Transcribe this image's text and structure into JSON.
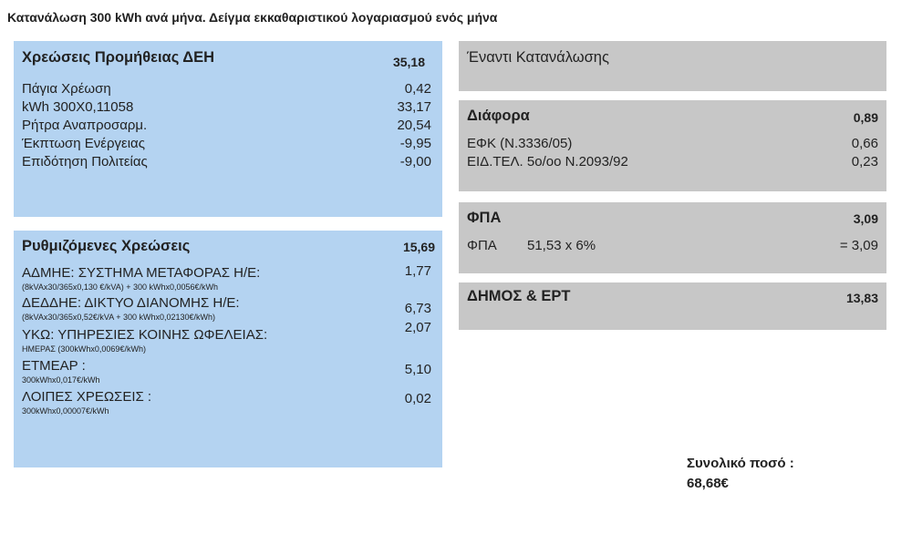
{
  "title": "Κατανάλωση 300 kWh ανά μήνα. Δείγμα εκκαθαριστικού λογαριασμού ενός μήνα",
  "supply": {
    "heading": "Χρεώσεις Προμήθειας ΔΕΗ",
    "total": "35,18",
    "items": [
      {
        "label": "Πάγια Χρέωση",
        "value": "0,42"
      },
      {
        "label": "kWh 300X0,11058",
        "value": "33,17"
      },
      {
        "label": "Ρήτρα Αναπροσαρμ.",
        "value": "20,54"
      },
      {
        "label": "Έκπτωση Ενέργειας",
        "value": "-9,95"
      },
      {
        "label": "Επιδότηση Πολιτείας",
        "value": "-9,00"
      }
    ]
  },
  "regulated": {
    "heading": "Ρυθμιζόμενες Χρεώσεις",
    "total": "15,69",
    "items": [
      {
        "label": "ΑΔΜΗΕ: ΣΥΣΤΗΜΑ ΜΕΤΑΦΟΡΑΣ Η/Ε:",
        "note": "(8kVAx30/365x0,130 €/kVA) + 300 kWhx0,0056€/kWh",
        "value": "1,77"
      },
      {
        "label": "ΔΕΔΔΗΕ: ΔΙΚΤΥΟ ΔΙΑΝΟΜΗΣ Η/Ε:",
        "note": "(8kVAx30/365x0,52€/kVA + 300 kWhx0,02130€/kWh)",
        "value": "6,73"
      },
      {
        "label": "ΥΚΩ: ΥΠΗΡΕΣΙΕΣ ΚΟΙΝΗΣ ΩΦΕΛΕΙΑΣ:",
        "note": "ΗΜΕΡΑΣ  (300kWhx0,0069€/kWh)",
        "value": "2,07"
      },
      {
        "label": "ΕΤΜΕΑΡ :",
        "note": "300kWhx0,017€/kWh",
        "value": "5,10"
      },
      {
        "label": "ΛΟΙΠΕΣ ΧΡΕΩΣΕΙΣ :",
        "note": "300kWhx0,00007€/kWh",
        "value": "0,02"
      }
    ]
  },
  "consumption": {
    "heading": "Έναντι Κατανάλωσης"
  },
  "difference": {
    "heading": "Διάφορα",
    "total": "0,89",
    "items": [
      {
        "label": "ΕΦΚ (Ν.3336/05)",
        "value": "0,66"
      },
      {
        "label": "ΕΙΔ.ΤΕΛ. 5ο/οο Ν.2093/92",
        "value": "0,23"
      }
    ]
  },
  "vat": {
    "heading": "ΦΠΑ",
    "total": "3,09",
    "label": "ΦΠΑ",
    "formula": "51,53 x 6%",
    "result": "= 3,09"
  },
  "municipal": {
    "heading": "ΔΗΜΟΣ & ΕΡΤ",
    "total": "13,83"
  },
  "grand_total": {
    "label": "Συνολικό ποσό :",
    "value": "68,68€"
  }
}
